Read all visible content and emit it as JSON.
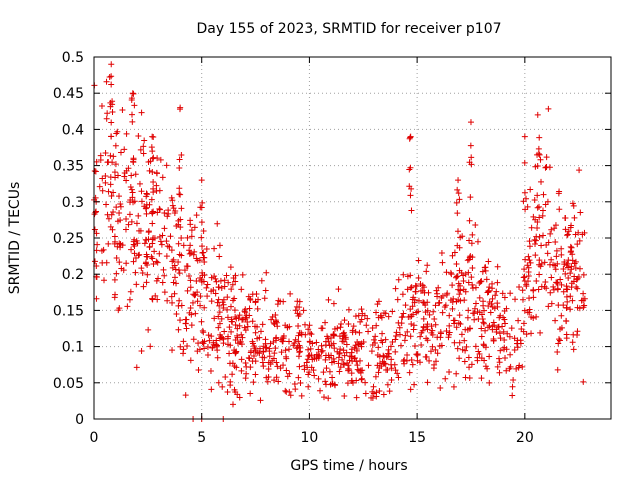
{
  "chart_data": {
    "type": "scatter",
    "title": "Day 155 of 2023, SRMTID for receiver p107",
    "xlabel": "GPS time / hours",
    "ylabel": "SRMTID / TECUs",
    "xlim": [
      0,
      24
    ],
    "ylim": [
      0,
      0.5
    ],
    "xticks": [
      0,
      5,
      10,
      15,
      20
    ],
    "xtick_labels": [
      "0",
      "5",
      "10",
      "15",
      "20"
    ],
    "yticks": [
      0,
      0.05,
      0.1,
      0.15,
      0.2,
      0.25,
      0.3,
      0.35,
      0.4,
      0.45,
      0.5
    ],
    "ytick_labels": [
      "0",
      "0.05",
      "0.1",
      "0.15",
      "0.2",
      "0.25",
      "0.3",
      "0.35",
      "0.4",
      "0.45",
      "0.5"
    ],
    "grid": true,
    "marker": "+",
    "marker_color": "#e00000",
    "x_range_of_data": [
      0,
      22.8
    ],
    "trend": [
      [
        0.0,
        0.3
      ],
      [
        0.5,
        0.31
      ],
      [
        1.0,
        0.3
      ],
      [
        1.5,
        0.28
      ],
      [
        2.0,
        0.27
      ],
      [
        2.5,
        0.25
      ],
      [
        3.0,
        0.23
      ],
      [
        3.5,
        0.21
      ],
      [
        4.0,
        0.19
      ],
      [
        4.5,
        0.18
      ],
      [
        5.0,
        0.17
      ],
      [
        5.5,
        0.16
      ],
      [
        6.0,
        0.14
      ],
      [
        6.5,
        0.12
      ],
      [
        7.0,
        0.11
      ],
      [
        7.5,
        0.11
      ],
      [
        8.0,
        0.11
      ],
      [
        8.5,
        0.11
      ],
      [
        9.0,
        0.1
      ],
      [
        9.5,
        0.1
      ],
      [
        10.0,
        0.09
      ],
      [
        10.5,
        0.08
      ],
      [
        11.0,
        0.09
      ],
      [
        11.5,
        0.1
      ],
      [
        12.0,
        0.1
      ],
      [
        12.5,
        0.09
      ],
      [
        13.0,
        0.09
      ],
      [
        13.5,
        0.1
      ],
      [
        14.0,
        0.11
      ],
      [
        14.5,
        0.12
      ],
      [
        15.0,
        0.14
      ],
      [
        15.5,
        0.13
      ],
      [
        16.0,
        0.13
      ],
      [
        16.5,
        0.14
      ],
      [
        17.0,
        0.15
      ],
      [
        17.5,
        0.16
      ],
      [
        18.0,
        0.15
      ],
      [
        18.5,
        0.14
      ],
      [
        19.0,
        0.12
      ],
      [
        19.5,
        0.1
      ],
      [
        20.0,
        0.14
      ],
      [
        20.5,
        0.24
      ],
      [
        21.0,
        0.26
      ],
      [
        21.5,
        0.2
      ],
      [
        22.0,
        0.19
      ],
      [
        22.5,
        0.2
      ],
      [
        22.8,
        0.19
      ]
    ],
    "spikes": [
      [
        0.8,
        0.49
      ],
      [
        1.8,
        0.45
      ],
      [
        4.0,
        0.43
      ],
      [
        14.7,
        0.39
      ],
      [
        17.5,
        0.41
      ],
      [
        20.0,
        0.39
      ],
      [
        20.6,
        0.42
      ],
      [
        16.9,
        0.33
      ],
      [
        5.0,
        0.33
      ],
      [
        2.7,
        0.39
      ]
    ],
    "zero_points": [
      [
        4.6,
        0.0
      ],
      [
        5.0,
        0.0
      ],
      [
        6.0,
        0.0
      ]
    ],
    "n_points": 1400
  }
}
